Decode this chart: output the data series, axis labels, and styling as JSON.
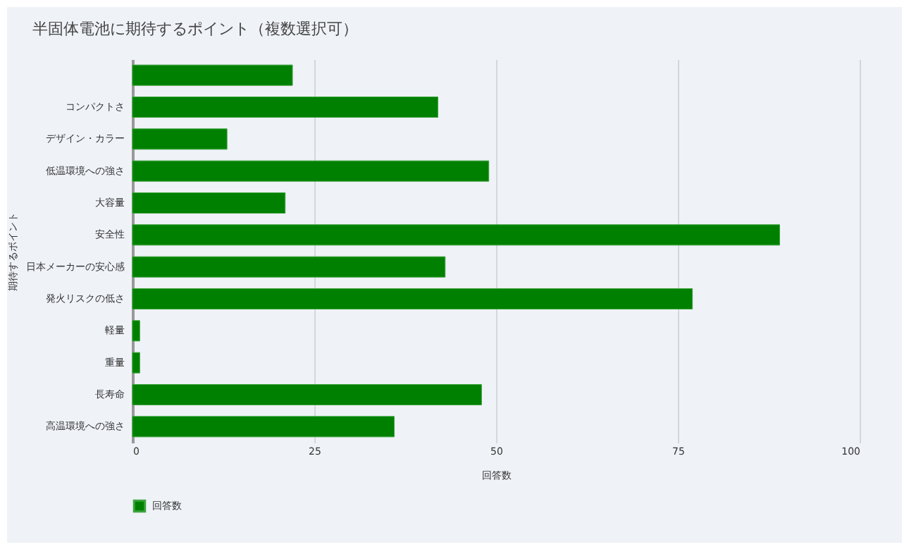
{
  "chart_data": {
    "type": "bar",
    "orientation": "horizontal",
    "title": "半固体電池に期待するポイント（複数選択可）",
    "xlabel": "回答数",
    "ylabel": "期待するポイント",
    "categories": [
      null,
      "コンパクトさ",
      "デザイン・カラー",
      "低温環境への強さ",
      "大容量",
      "安全性",
      "日本メーカーの安心感",
      "発火リスクの低さ",
      "軽量",
      "重量",
      "長寿命",
      "高温環境への強さ"
    ],
    "series": [
      {
        "name": "回答数",
        "color": "#008000",
        "values": [
          22,
          42,
          13,
          49,
          21,
          89,
          43,
          77,
          1,
          1,
          48,
          36
        ]
      }
    ],
    "xlim": [
      0,
      100
    ],
    "xticks": [
      0,
      25,
      50,
      75,
      100
    ],
    "grid": "x",
    "legend": "bottom"
  }
}
